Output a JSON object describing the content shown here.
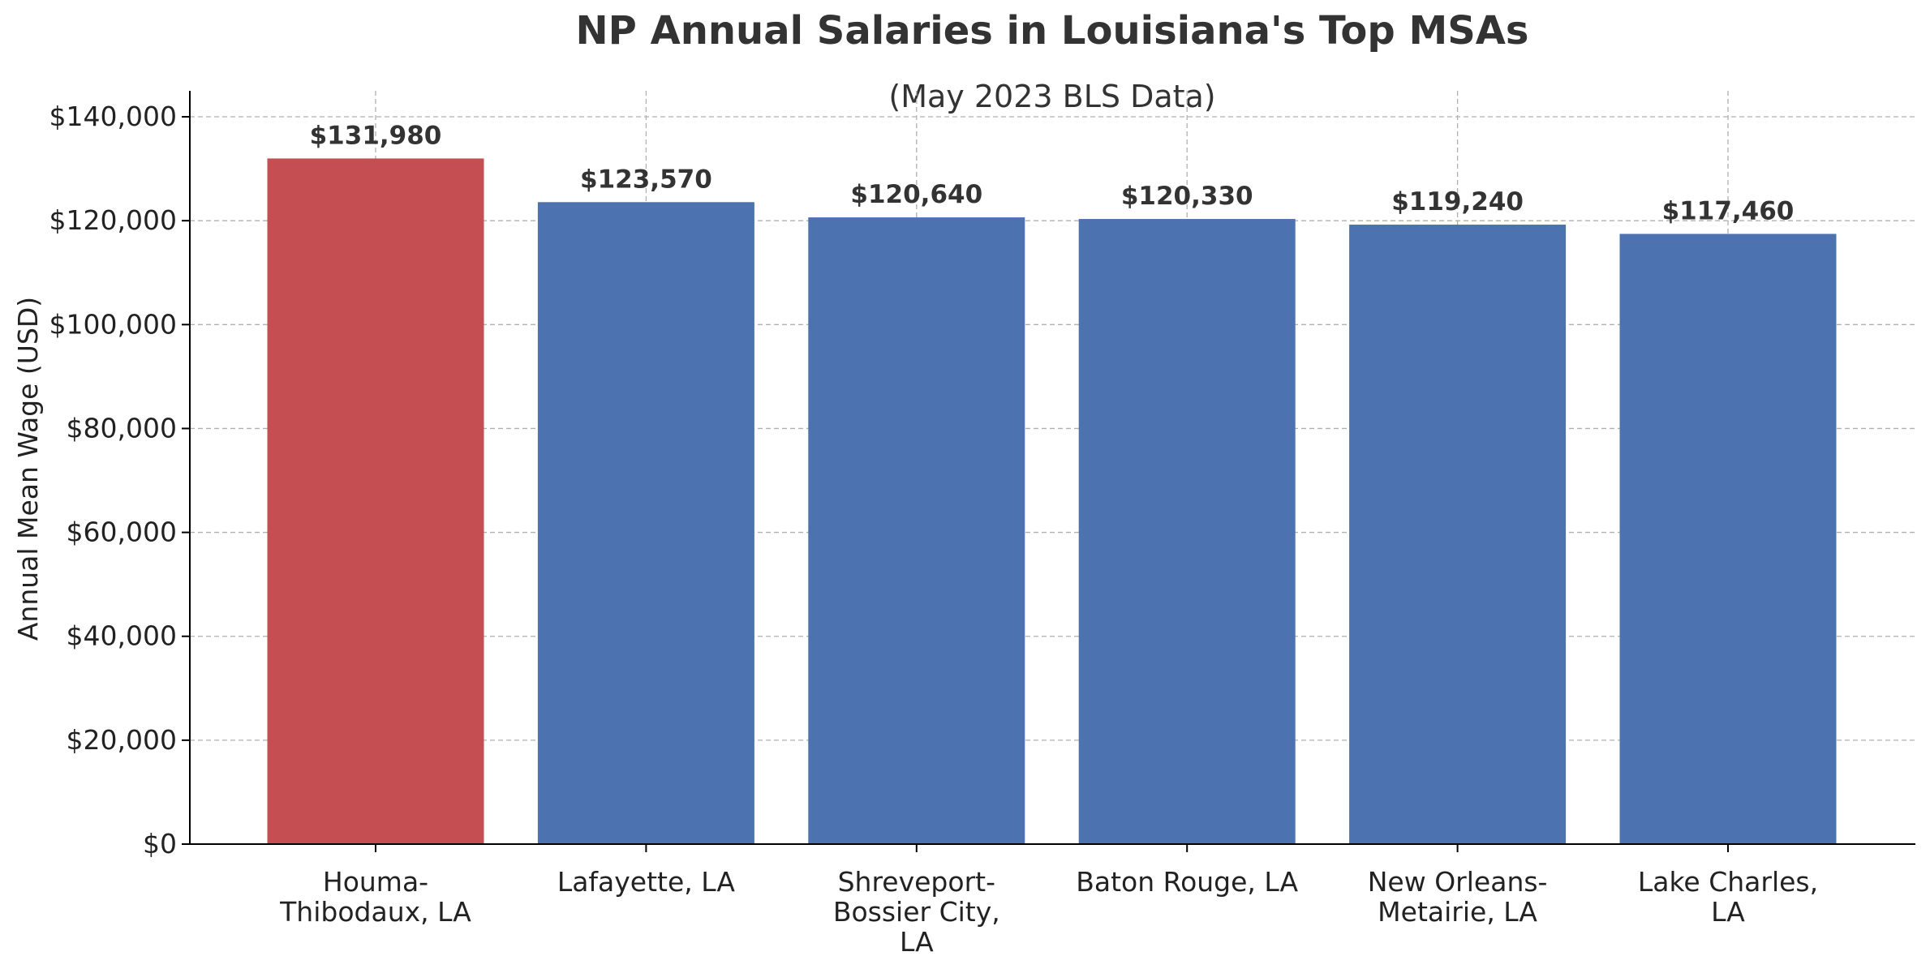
{
  "chart_data": {
    "type": "bar",
    "title": "NP Annual Salaries in Louisiana's Top MSAs",
    "subtitle": "(May 2023 BLS Data)",
    "xlabel": "",
    "ylabel": "Annual Mean Wage (USD)",
    "categories": [
      [
        "Houma-",
        "Thibodaux, LA"
      ],
      [
        "Lafayette, LA"
      ],
      [
        "Shreveport-",
        "Bossier City,",
        "LA"
      ],
      [
        "Baton Rouge, LA"
      ],
      [
        "New Orleans-",
        "Metairie, LA"
      ],
      [
        "Lake Charles,",
        "LA"
      ]
    ],
    "values": [
      131980,
      123570,
      120640,
      120330,
      119240,
      117460
    ],
    "value_labels": [
      "$131,980",
      "$123,570",
      "$120,640",
      "$120,330",
      "$119,240",
      "$117,460"
    ],
    "bar_colors": [
      "#c44e52",
      "#4c72b0",
      "#4c72b0",
      "#4c72b0",
      "#4c72b0",
      "#4c72b0"
    ],
    "ylim": [
      0,
      145000
    ],
    "yticks": [
      0,
      20000,
      40000,
      60000,
      80000,
      100000,
      120000,
      140000
    ],
    "ytick_labels": [
      "$0",
      "$20,000",
      "$40,000",
      "$60,000",
      "$80,000",
      "$100,000",
      "$120,000",
      "$140,000"
    ],
    "grid": true,
    "legend": "none"
  }
}
